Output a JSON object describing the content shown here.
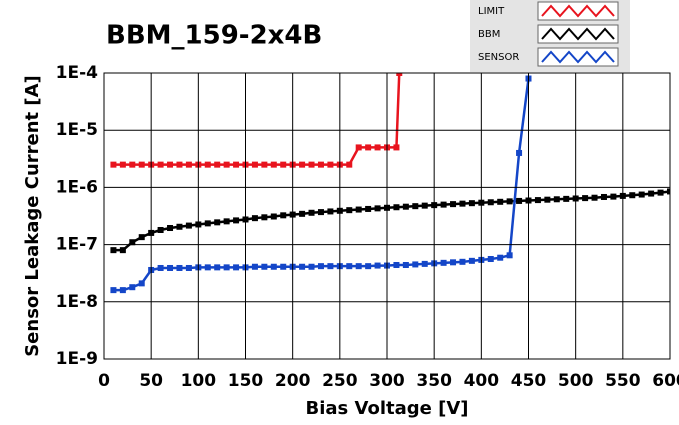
{
  "chart_data": {
    "type": "line",
    "title": "BBM_159-2x4B",
    "x_label": "Bias Voltage [V]",
    "y_label": "Sensor Leakage Current [A]",
    "ylog": true,
    "grid": true,
    "xlim": [
      0,
      600
    ],
    "xticks": [
      0,
      50,
      100,
      150,
      200,
      250,
      300,
      350,
      400,
      450,
      500,
      550,
      600
    ],
    "ylim": [
      1e-09,
      0.0001
    ],
    "yticks": [
      {
        "value": 1e-09,
        "label": "1E-9"
      },
      {
        "value": 1e-08,
        "label": "1E-8"
      },
      {
        "value": 1e-07,
        "label": "1E-7"
      },
      {
        "value": 1e-06,
        "label": "1E-6"
      },
      {
        "value": 1e-05,
        "label": "1E-5"
      },
      {
        "value": 0.0001,
        "label": "1E-4"
      }
    ],
    "series": [
      {
        "name": "LIMIT",
        "color": "#e8141e",
        "x": [
          10,
          20,
          30,
          40,
          50,
          60,
          70,
          80,
          90,
          100,
          110,
          120,
          130,
          140,
          150,
          160,
          170,
          180,
          190,
          200,
          210,
          220,
          230,
          240,
          250,
          260,
          270,
          280,
          290,
          300,
          310,
          313
        ],
        "values": [
          2.5e-06,
          2.5e-06,
          2.5e-06,
          2.5e-06,
          2.5e-06,
          2.5e-06,
          2.5e-06,
          2.5e-06,
          2.5e-06,
          2.5e-06,
          2.5e-06,
          2.5e-06,
          2.5e-06,
          2.5e-06,
          2.5e-06,
          2.5e-06,
          2.5e-06,
          2.5e-06,
          2.5e-06,
          2.5e-06,
          2.5e-06,
          2.5e-06,
          2.5e-06,
          2.5e-06,
          2.5e-06,
          2.5e-06,
          5e-06,
          5e-06,
          5e-06,
          5e-06,
          5e-06,
          0.0001
        ]
      },
      {
        "name": "BBM",
        "color": "#000000",
        "x": [
          10,
          20,
          30,
          40,
          50,
          60,
          70,
          80,
          90,
          100,
          110,
          120,
          130,
          140,
          150,
          160,
          170,
          180,
          190,
          200,
          210,
          220,
          230,
          240,
          250,
          260,
          270,
          280,
          290,
          300,
          310,
          320,
          330,
          340,
          350,
          360,
          370,
          380,
          390,
          400,
          410,
          420,
          430,
          440,
          450,
          460,
          470,
          480,
          490,
          500,
          510,
          520,
          530,
          540,
          550,
          560,
          570,
          580,
          590,
          600
        ],
        "values": [
          8e-08,
          8e-08,
          1.1e-07,
          1.35e-07,
          1.6e-07,
          1.8e-07,
          1.95e-07,
          2.05e-07,
          2.15e-07,
          2.25e-07,
          2.35e-07,
          2.45e-07,
          2.55e-07,
          2.65e-07,
          2.75e-07,
          2.9e-07,
          3e-07,
          3.1e-07,
          3.25e-07,
          3.35e-07,
          3.45e-07,
          3.6e-07,
          3.7e-07,
          3.8e-07,
          3.9e-07,
          4e-07,
          4.1e-07,
          4.2e-07,
          4.3e-07,
          4.4e-07,
          4.5e-07,
          4.6e-07,
          4.7e-07,
          4.8e-07,
          4.9e-07,
          5e-07,
          5.1e-07,
          5.2e-07,
          5.3e-07,
          5.4e-07,
          5.5e-07,
          5.6e-07,
          5.7e-07,
          5.8e-07,
          5.9e-07,
          6e-07,
          6.1e-07,
          6.2e-07,
          6.3e-07,
          6.4e-07,
          6.5e-07,
          6.6e-07,
          6.8e-07,
          6.9e-07,
          7.1e-07,
          7.3e-07,
          7.5e-07,
          7.8e-07,
          8.1e-07,
          8.5e-07
        ]
      },
      {
        "name": "SENSOR",
        "color": "#1446c8",
        "x": [
          10,
          20,
          30,
          40,
          50,
          60,
          70,
          80,
          90,
          100,
          110,
          120,
          130,
          140,
          150,
          160,
          170,
          180,
          190,
          200,
          210,
          220,
          230,
          240,
          250,
          260,
          270,
          280,
          290,
          300,
          310,
          320,
          330,
          340,
          350,
          360,
          370,
          380,
          390,
          400,
          410,
          420,
          430,
          440,
          450
        ],
        "values": [
          1.6e-08,
          1.6e-08,
          1.8e-08,
          2.1e-08,
          3.6e-08,
          3.9e-08,
          3.9e-08,
          3.9e-08,
          3.9e-08,
          4e-08,
          4e-08,
          4e-08,
          4e-08,
          4e-08,
          4e-08,
          4.1e-08,
          4.1e-08,
          4.1e-08,
          4.1e-08,
          4.1e-08,
          4.1e-08,
          4.1e-08,
          4.2e-08,
          4.2e-08,
          4.2e-08,
          4.2e-08,
          4.2e-08,
          4.2e-08,
          4.3e-08,
          4.3e-08,
          4.4e-08,
          4.4e-08,
          4.5e-08,
          4.6e-08,
          4.7e-08,
          4.8e-08,
          4.9e-08,
          5e-08,
          5.2e-08,
          5.4e-08,
          5.6e-08,
          5.9e-08,
          6.5e-08,
          4e-06,
          8e-05
        ]
      }
    ]
  }
}
